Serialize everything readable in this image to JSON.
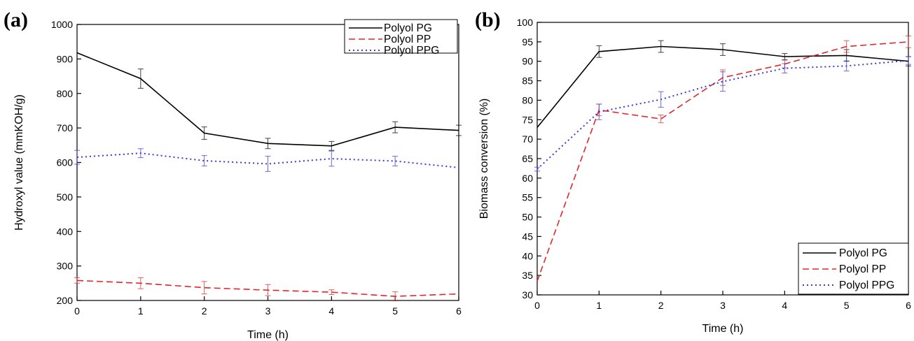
{
  "chart_data": [
    {
      "panel_label": "(a)",
      "type": "line",
      "xlabel": "Time (h)",
      "ylabel": "Hydroxyl value (mmKOH/g)",
      "xlim": [
        0,
        6
      ],
      "ylim": [
        200,
        1000
      ],
      "xticks": [
        0,
        1,
        2,
        3,
        4,
        5,
        6
      ],
      "yticks": [
        200,
        300,
        400,
        500,
        600,
        700,
        800,
        900,
        1000
      ],
      "grid": false,
      "legend_position": "top-right",
      "series": [
        {
          "name": "Polyol PG",
          "color": "#000000",
          "style": "solid",
          "x": [
            0,
            1,
            2,
            3,
            4,
            5,
            6
          ],
          "y": [
            918,
            843,
            685,
            655,
            648,
            702,
            693
          ],
          "err": [
            0,
            28,
            18,
            15,
            13,
            16,
            15
          ]
        },
        {
          "name": "Polyol PP",
          "color": "#e3262b",
          "style": "dashed",
          "x": [
            0,
            1,
            2,
            3,
            4,
            5,
            6
          ],
          "y": [
            258,
            250,
            237,
            230,
            224,
            212,
            219
          ],
          "err": [
            8,
            16,
            18,
            16,
            7,
            13,
            0
          ]
        },
        {
          "name": "Polyol PPG",
          "color": "#3a3ad6",
          "style": "dotted",
          "x": [
            0,
            1,
            2,
            3,
            4,
            5,
            6
          ],
          "y": [
            615,
            627,
            605,
            596,
            611,
            604,
            585
          ],
          "err": [
            20,
            13,
            15,
            22,
            22,
            14,
            0
          ]
        }
      ]
    },
    {
      "panel_label": "(b)",
      "type": "line",
      "xlabel": "Time (h)",
      "ylabel": "Biomass conversion (%)",
      "xlim": [
        0,
        6
      ],
      "ylim": [
        30,
        100
      ],
      "xticks": [
        0,
        1,
        2,
        3,
        4,
        5,
        6
      ],
      "yticks": [
        30,
        35,
        40,
        45,
        50,
        55,
        60,
        65,
        70,
        75,
        80,
        85,
        90,
        95,
        100
      ],
      "grid": false,
      "legend_position": "bottom-right",
      "series": [
        {
          "name": "Polyol PG",
          "color": "#000000",
          "style": "solid",
          "x": [
            0,
            1,
            2,
            3,
            4,
            5,
            6
          ],
          "y": [
            73,
            92.5,
            93.8,
            93,
            91.2,
            91.5,
            90
          ],
          "err": [
            0,
            1.5,
            1.5,
            1.5,
            0.8,
            1.5,
            1.2
          ]
        },
        {
          "name": "Polyol PP",
          "color": "#e3262b",
          "style": "dashed",
          "x": [
            0,
            1,
            2,
            3,
            4,
            5,
            6
          ],
          "y": [
            33.5,
            77.5,
            75.2,
            85.8,
            89.3,
            93.8,
            95
          ],
          "err": [
            0,
            1.5,
            1,
            2,
            1,
            1.5,
            1.5
          ]
        },
        {
          "name": "Polyol PPG",
          "color": "#3a3ad6",
          "style": "dotted",
          "x": [
            0,
            1,
            2,
            3,
            4,
            5,
            6
          ],
          "y": [
            62.3,
            77,
            80.2,
            84.8,
            88.2,
            88.8,
            90.2
          ],
          "err": [
            0.5,
            2,
            2,
            2.5,
            1.2,
            1.3,
            1
          ]
        }
      ]
    }
  ]
}
